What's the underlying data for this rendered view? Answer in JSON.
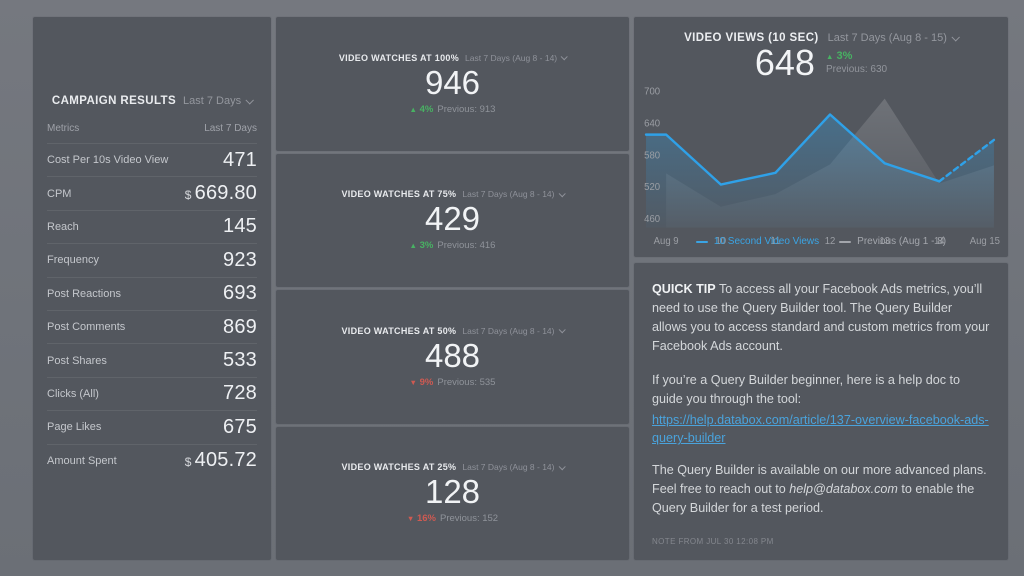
{
  "left_panel": {
    "title": "CAMPAIGN RESULTS",
    "range_label": "Last 7 Days",
    "table": {
      "col_metric": "Metrics",
      "col_value": "Last 7 Days",
      "rows": [
        {
          "label": "Cost Per 10s Video View",
          "prefix": "",
          "value": "471"
        },
        {
          "label": "CPM",
          "prefix": "$",
          "value": "669.80"
        },
        {
          "label": "Reach",
          "prefix": "",
          "value": "145"
        },
        {
          "label": "Frequency",
          "prefix": "",
          "value": "923"
        },
        {
          "label": "Post Reactions",
          "prefix": "",
          "value": "693"
        },
        {
          "label": "Post Comments",
          "prefix": "",
          "value": "869"
        },
        {
          "label": "Post Shares",
          "prefix": "",
          "value": "533"
        },
        {
          "label": "Clicks (All)",
          "prefix": "",
          "value": "728"
        },
        {
          "label": "Page Likes",
          "prefix": "",
          "value": "675"
        },
        {
          "label": "Amount Spent",
          "prefix": "$",
          "value": "405.72"
        }
      ]
    }
  },
  "stat_cards": [
    {
      "title": "VIDEO WATCHES AT 100%",
      "range": "Last 7 Days (Aug 8 - 14)",
      "value": "946",
      "direction": "up",
      "arrow": "▲",
      "delta": "4%",
      "previous": "Previous: 913"
    },
    {
      "title": "VIDEO WATCHES AT 75%",
      "range": "Last 7 Days (Aug 8 - 14)",
      "value": "429",
      "direction": "up",
      "arrow": "▲",
      "delta": "3%",
      "previous": "Previous: 416"
    },
    {
      "title": "VIDEO WATCHES AT 50%",
      "range": "Last 7 Days (Aug 8 - 14)",
      "value": "488",
      "direction": "down",
      "arrow": "▼",
      "delta": "9%",
      "previous": "Previous: 535"
    },
    {
      "title": "VIDEO WATCHES AT 25%",
      "range": "Last 7 Days (Aug 8 - 14)",
      "value": "128",
      "direction": "down",
      "arrow": "▼",
      "delta": "16%",
      "previous": "Previous: 152"
    }
  ],
  "video_views": {
    "title": "VIDEO VIEWS (10 SEC)",
    "range": "Last 7 Days (Aug 8 - 15)",
    "value": "648",
    "arrow": "▲",
    "delta": "3%",
    "previous": "Previous: 630"
  },
  "chart_data": {
    "type": "line",
    "title": "VIDEO VIEWS (10 SEC)",
    "x": [
      "Aug 9",
      "10",
      "11",
      "12",
      "13",
      "14",
      "Aug 15"
    ],
    "series": [
      {
        "name": "10 Second Video Views",
        "values": [
          618,
          524,
          546,
          656,
          564,
          530,
          608
        ],
        "color": "#2fa1e8",
        "style": "line_area",
        "last_segment": "dashed_projection"
      },
      {
        "name": "Previous (Aug 1 - 8)",
        "values": [
          545,
          482,
          506,
          562,
          686,
          526,
          560
        ],
        "color": "rgba(255,255,255,0.55)",
        "style": "area"
      }
    ],
    "ylim": [
      460,
      700
    ],
    "yticks": [
      700,
      640,
      580,
      520,
      460
    ],
    "grid": false,
    "legend_position": "bottom"
  },
  "quick_tip": {
    "label": "QUICK TIP",
    "p1": " To access all your Facebook Ads metrics, you’ll need to use the Query Builder tool. The Query Builder allows you to access standard and custom metrics from your Facebook Ads account.",
    "p2": "If you’re a Query Builder beginner, here is a help doc to guide you through the tool:",
    "link": "https://help.databox.com/article/137-overview-facebook-ads-query-builder",
    "p3_before": "The Query Builder is available on our more advanced plans. Feel free to reach out to ",
    "p3_email": "help@databox.com",
    "p3_after": " to enable the Query Builder for a test period.",
    "note": "NOTE FROM JUL 30 12:08 PM"
  },
  "colors": {
    "page_bg": "#71757c",
    "panel_bg": "#53575e",
    "accent_blue": "#2fa1e8",
    "positive_green": "#48b263",
    "negative_red": "#cf5a52",
    "link_blue": "#4aa3dc",
    "muted_text": "#94979e",
    "value_text": "#eef0f3"
  }
}
